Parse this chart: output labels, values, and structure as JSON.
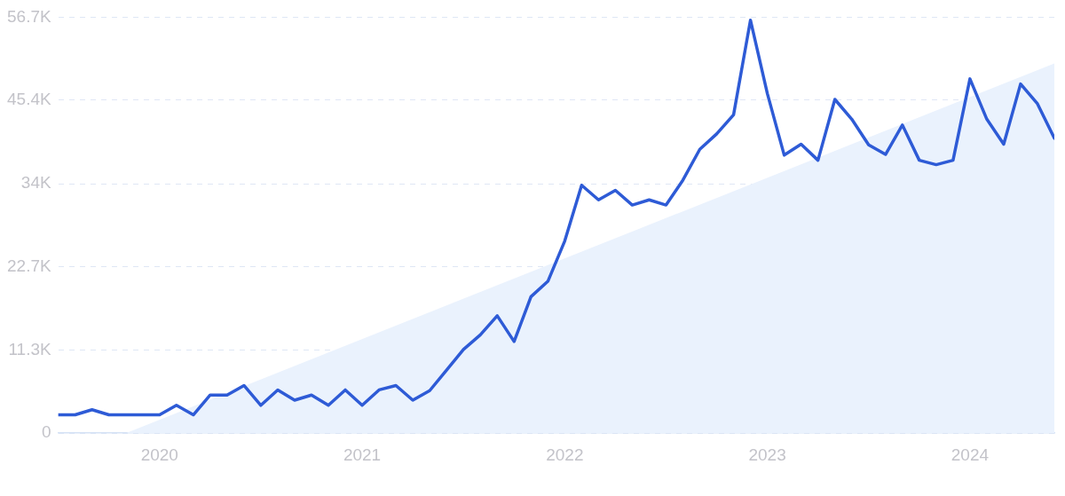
{
  "chart_data": {
    "type": "line",
    "x": [
      "2019-07",
      "2019-08",
      "2019-09",
      "2019-10",
      "2019-11",
      "2019-12",
      "2020-01",
      "2020-02",
      "2020-03",
      "2020-04",
      "2020-05",
      "2020-06",
      "2020-07",
      "2020-08",
      "2020-09",
      "2020-10",
      "2020-11",
      "2020-12",
      "2021-01",
      "2021-02",
      "2021-03",
      "2021-04",
      "2021-05",
      "2021-06",
      "2021-07",
      "2021-08",
      "2021-09",
      "2021-10",
      "2021-11",
      "2021-12",
      "2022-01",
      "2022-02",
      "2022-03",
      "2022-04",
      "2022-05",
      "2022-06",
      "2022-07",
      "2022-08",
      "2022-09",
      "2022-10",
      "2022-11",
      "2022-12",
      "2023-01",
      "2023-02",
      "2023-03",
      "2023-04",
      "2023-05",
      "2023-06",
      "2023-07",
      "2023-08",
      "2023-09",
      "2023-10",
      "2023-11",
      "2023-12",
      "2024-01",
      "2024-02",
      "2024-03",
      "2024-04",
      "2024-05",
      "2024-06"
    ],
    "series": [
      {
        "type": "area",
        "color": "#eaf2fd",
        "x": [
          "2019-11",
          "2024-06"
        ],
        "values": [
          0,
          50400
        ]
      },
      {
        "color": "#2e5bd6",
        "values": [
          2500,
          2500,
          3200,
          2500,
          2500,
          2500,
          2500,
          3800,
          2500,
          5200,
          5200,
          6500,
          3800,
          5900,
          4500,
          5200,
          3800,
          5900,
          3800,
          5900,
          6500,
          4500,
          5800,
          8600,
          11400,
          13400,
          16000,
          12500,
          18600,
          20700,
          26200,
          33800,
          31800,
          33100,
          31100,
          31800,
          31100,
          34500,
          38700,
          40800,
          43400,
          56300,
          46300,
          37900,
          39400,
          37200,
          45500,
          42800,
          39300,
          38000,
          42000,
          37200,
          36600,
          37200,
          48300,
          42800,
          39400,
          47600,
          44900,
          40200
        ]
      }
    ],
    "xlim": [
      "2019-07",
      "2024-06"
    ],
    "xticks": [
      {
        "value": "2020",
        "label": "2020"
      },
      {
        "value": "2021",
        "label": "2021"
      },
      {
        "value": "2022",
        "label": "2022"
      },
      {
        "value": "2023",
        "label": "2023"
      },
      {
        "value": "2024",
        "label": "2024"
      }
    ],
    "ylim": [
      0,
      56700
    ],
    "yticks": [
      0,
      {
        "value": 11300,
        "label": "11.3K"
      },
      {
        "value": 22700,
        "label": "22.7K"
      },
      {
        "value": 34000,
        "label": "34K"
      },
      {
        "value": 45400,
        "label": "45.4K"
      },
      {
        "value": 56700,
        "label": "56.7K"
      }
    ],
    "grid": "y",
    "legend": false,
    "marker": "none",
    "line_style": "solid"
  }
}
